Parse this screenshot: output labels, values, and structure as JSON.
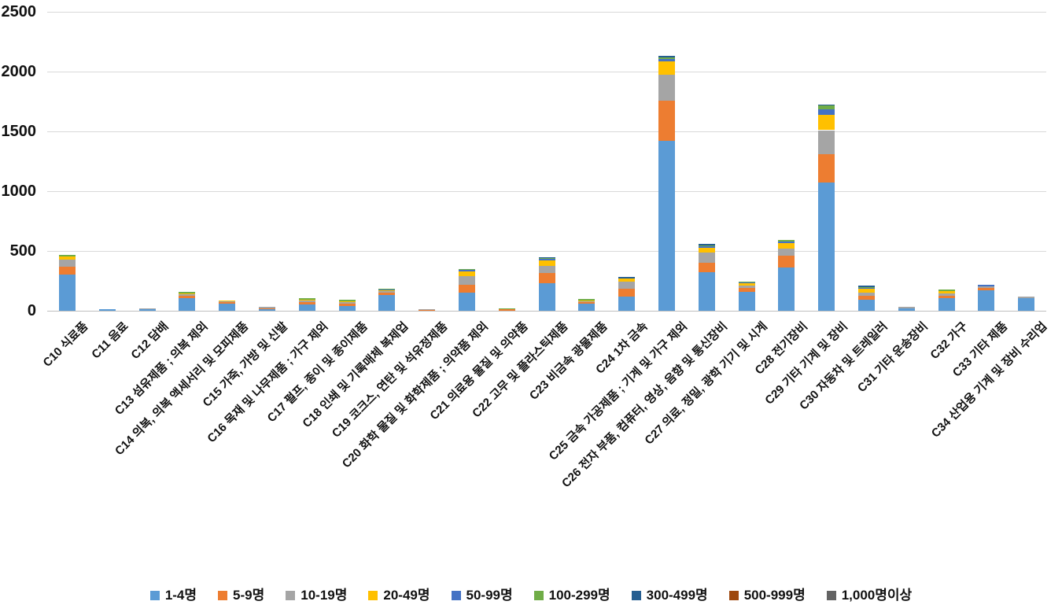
{
  "chart_data": {
    "type": "bar",
    "stacked": true,
    "title": "",
    "xlabel": "",
    "ylabel": "",
    "grid": true,
    "legend_position": "bottom",
    "ylim": [
      0,
      2500
    ],
    "y_ticks": [
      0,
      500,
      1000,
      1500,
      2000,
      2500
    ],
    "categories": [
      "C10 식료품",
      "C11 음료",
      "C12 담배",
      "C13 섬유제품 ; 의복 제외",
      "C14 의복, 의복 액세서리 및 모피제품",
      "C15 가죽, 가방 및 신발",
      "C16 목재 및 나무제품 ; 가구 제외",
      "C17 펄프, 종이 및 종이제품",
      "C18 인쇄 및 기록매체 복제업",
      "C19 코크스, 연탄 및 석유정제품",
      "C20 화학 물질 및 화학제품 ; 의약품 제외",
      "C21 의료용 물질 및 의약품",
      "C22 고무 및 플라스틱제품",
      "C23 비금속 광물제품",
      "C24 1차 금속",
      "C25 금속 가공제품 ; 기계 및 가구 제외",
      "C26 전자 부품, 컴퓨터, 영상, 음향 및 통신장비",
      "C27 의료, 정밀, 광학 기기 및 시계",
      "C28 전기장비",
      "C29 기타 기계 및 장비",
      "C30 자동차 및 트레일러",
      "C31 기타 운송장비",
      "C32 가구",
      "C33 기타 제품",
      "C34 산업용 기계 및 장비 수리업"
    ],
    "series": [
      {
        "name": "1-4명",
        "color": "#5B9BD5",
        "values": [
          300,
          10,
          10,
          103,
          58,
          16,
          51,
          40,
          130,
          3,
          152,
          2,
          230,
          59,
          120,
          1420,
          320,
          157,
          363,
          1070,
          95,
          18,
          103,
          170,
          105
        ]
      },
      {
        "name": "5-9명",
        "color": "#ED7D31",
        "values": [
          66,
          0,
          0,
          22,
          13,
          6,
          20,
          20,
          22,
          2,
          65,
          8,
          85,
          13,
          65,
          335,
          80,
          35,
          98,
          240,
          33,
          4,
          22,
          22,
          3
        ]
      },
      {
        "name": "10-19명",
        "color": "#A5A5A5",
        "values": [
          59,
          0,
          2,
          11,
          8,
          7,
          13,
          11,
          13,
          8,
          72,
          2,
          58,
          9,
          58,
          220,
          90,
          20,
          61,
          200,
          22,
          8,
          22,
          12,
          8
        ]
      },
      {
        "name": "20-49명",
        "color": "#FFC000",
        "values": [
          27,
          0,
          0,
          9,
          2,
          0,
          9,
          9,
          9,
          0,
          41,
          0,
          45,
          6,
          24,
          110,
          37,
          17,
          43,
          125,
          37,
          0,
          18,
          3,
          0
        ]
      },
      {
        "name": "50-99명",
        "color": "#4472C4",
        "values": [
          5,
          0,
          0,
          0,
          0,
          0,
          2,
          0,
          3,
          0,
          12,
          0,
          14,
          0,
          0,
          20,
          13,
          7,
          15,
          50,
          5,
          0,
          0,
          5,
          0
        ]
      },
      {
        "name": "100-299명",
        "color": "#70AD47",
        "values": [
          6,
          0,
          0,
          5,
          0,
          0,
          8,
          8,
          3,
          0,
          8,
          8,
          8,
          4,
          6,
          15,
          9,
          8,
          7,
          30,
          8,
          0,
          7,
          0,
          0
        ]
      },
      {
        "name": "300-499명",
        "color": "#255E91",
        "values": [
          0,
          0,
          0,
          0,
          0,
          0,
          0,
          0,
          0,
          0,
          0,
          0,
          6,
          0,
          5,
          5,
          8,
          0,
          0,
          3,
          10,
          0,
          0,
          0,
          0
        ]
      },
      {
        "name": "500-999명",
        "color": "#9E480E",
        "values": [
          0,
          0,
          0,
          0,
          0,
          0,
          0,
          0,
          0,
          0,
          0,
          0,
          0,
          0,
          0,
          0,
          0,
          0,
          0,
          0,
          0,
          0,
          0,
          0,
          0
        ]
      },
      {
        "name": "1,000명이상",
        "color": "#636363",
        "values": [
          0,
          0,
          0,
          0,
          0,
          0,
          0,
          0,
          0,
          0,
          0,
          0,
          0,
          0,
          0,
          0,
          0,
          0,
          0,
          0,
          0,
          0,
          0,
          0,
          0
        ]
      }
    ]
  },
  "layout_colors": {
    "background": "#ffffff",
    "gridline": "#d9d9d9",
    "axis_line": "#bfbfbf",
    "text": "#111111"
  }
}
